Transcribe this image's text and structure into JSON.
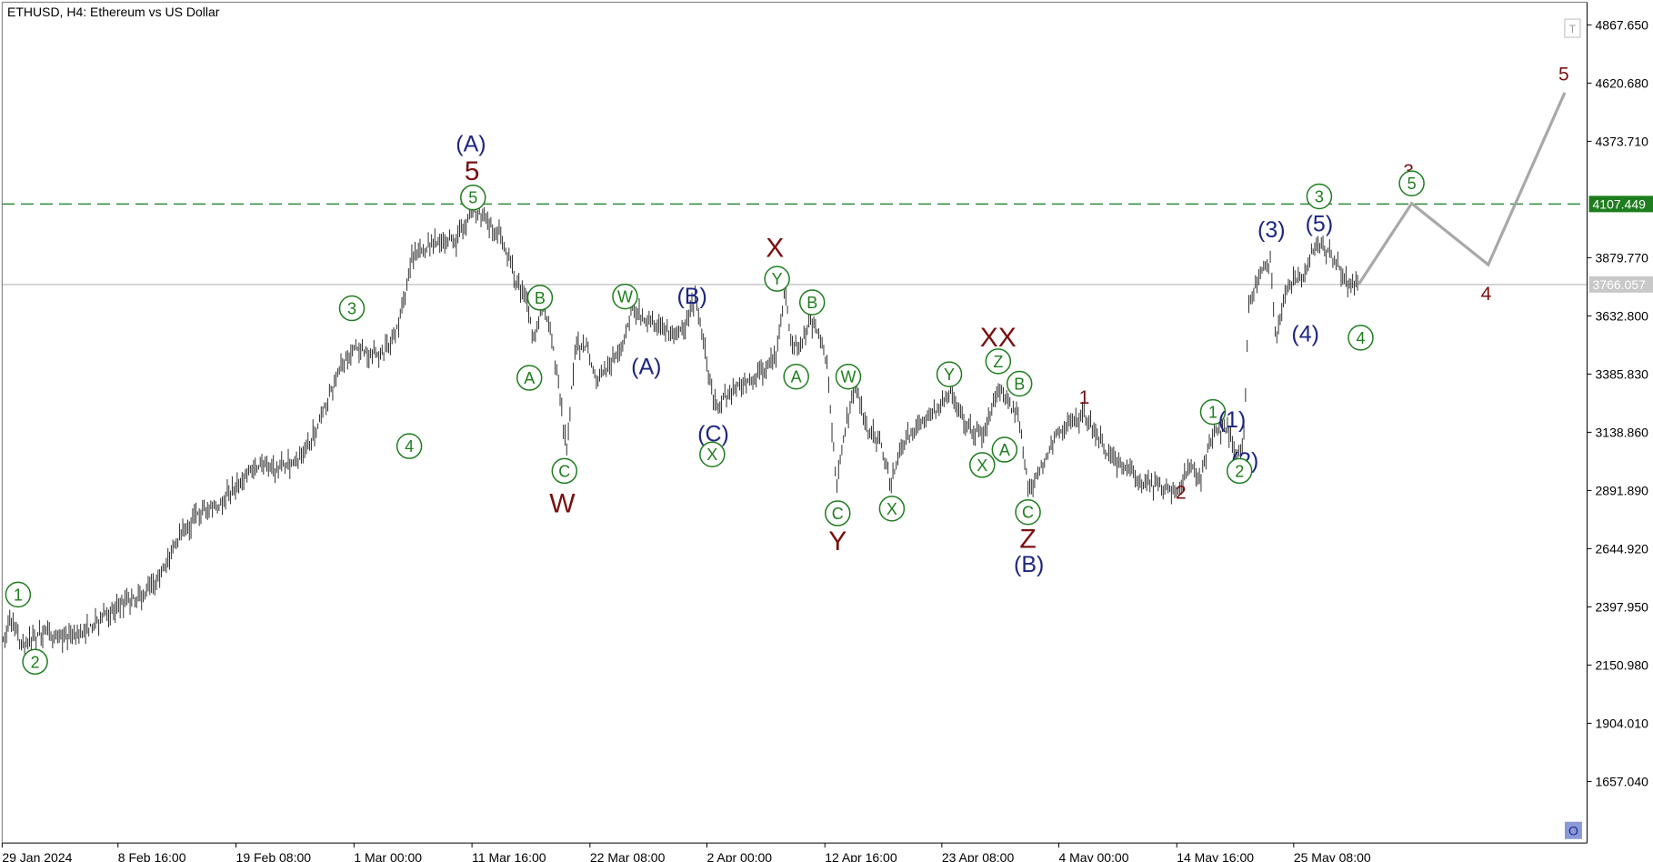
{
  "chart_title": "ETHUSD, H4:  Ethereum vs US Dollar",
  "colors": {
    "candle": "#1a1a1a",
    "green_label": "#1e7d1e",
    "navy_label": "#1e2680",
    "maroon_label": "#7a1010",
    "resistance_line": "#2e8b3a",
    "current_line": "#c8c8c8",
    "projection": "#a8a8a8",
    "axis": "#000000",
    "resistance_tag_bg": "#1e7d1e",
    "current_tag_bg": "#c8c8c8",
    "corner_button_bg": "#8a9ad8"
  },
  "axis": {
    "y_ticks": [
      "4867.650",
      "4620.680",
      "4373.710",
      "3879.770",
      "3632.800",
      "3385.830",
      "3138.860",
      "2891.890",
      "2644.920",
      "2397.950",
      "2150.980",
      "1904.010",
      "1657.040"
    ],
    "x_ticks": [
      "29 Jan 2024",
      "8 Feb 16:00",
      "19 Feb 08:00",
      "1 Mar 00:00",
      "11 Mar 16:00",
      "22 Mar 08:00",
      "2 Apr 00:00",
      "12 Apr 16:00",
      "23 Apr 08:00",
      "4 May 00:00",
      "14 May 16:00",
      "25 May 08:00"
    ],
    "resistance_label": "4107.449",
    "current_label": "3766.057",
    "top_button_icon": "T",
    "bottom_button_icon": "O"
  },
  "chart_data": {
    "type": "candlestick",
    "timeframe": "H4",
    "symbol": "ETHUSD",
    "ylim": [
      1450,
      4940
    ],
    "grid": false,
    "x_ticks": [
      "29 Jan 2024",
      "8 Feb 16:00",
      "19 Feb 08:00",
      "1 Mar 00:00",
      "11 Mar 16:00",
      "22 Mar 08:00",
      "2 Apr 00:00",
      "12 Apr 16:00",
      "23 Apr 08:00",
      "4 May 00:00",
      "14 May 16:00",
      "25 May 08:00"
    ],
    "resistance_level": 4107.449,
    "current_price": 3766.057,
    "price_path": [
      [
        0,
        2230
      ],
      [
        9,
        2330
      ],
      [
        12,
        2360
      ],
      [
        16,
        2280
      ],
      [
        22,
        2230
      ],
      [
        40,
        2290
      ],
      [
        60,
        2270
      ],
      [
        75,
        2280
      ],
      [
        90,
        2330
      ],
      [
        110,
        2400
      ],
      [
        130,
        2440
      ],
      [
        145,
        2480
      ],
      [
        155,
        2570
      ],
      [
        170,
        2700
      ],
      [
        190,
        2810
      ],
      [
        205,
        2820
      ],
      [
        220,
        2900
      ],
      [
        240,
        3000
      ],
      [
        260,
        2980
      ],
      [
        280,
        3020
      ],
      [
        298,
        3150
      ],
      [
        310,
        3300
      ],
      [
        322,
        3430
      ],
      [
        333,
        3510
      ],
      [
        345,
        3470
      ],
      [
        360,
        3470
      ],
      [
        372,
        3550
      ],
      [
        380,
        3700
      ],
      [
        387,
        3880
      ],
      [
        400,
        3920
      ],
      [
        415,
        3960
      ],
      [
        430,
        3950
      ],
      [
        445,
        4090
      ],
      [
        460,
        4020
      ],
      [
        472,
        3980
      ],
      [
        485,
        3780
      ],
      [
        495,
        3700
      ],
      [
        503,
        3520
      ],
      [
        510,
        3680
      ],
      [
        518,
        3580
      ],
      [
        525,
        3350
      ],
      [
        533,
        3060
      ],
      [
        541,
        3500
      ],
      [
        553,
        3500
      ],
      [
        560,
        3360
      ],
      [
        572,
        3420
      ],
      [
        585,
        3480
      ],
      [
        595,
        3690
      ],
      [
        605,
        3620
      ],
      [
        618,
        3590
      ],
      [
        632,
        3560
      ],
      [
        645,
        3600
      ],
      [
        654,
        3700
      ],
      [
        663,
        3480
      ],
      [
        673,
        3250
      ],
      [
        690,
        3320
      ],
      [
        712,
        3380
      ],
      [
        730,
        3460
      ],
      [
        738,
        3730
      ],
      [
        745,
        3520
      ],
      [
        752,
        3490
      ],
      [
        762,
        3620
      ],
      [
        770,
        3550
      ],
      [
        778,
        3420
      ],
      [
        787,
        2900
      ],
      [
        795,
        3150
      ],
      [
        805,
        3350
      ],
      [
        815,
        3150
      ],
      [
        828,
        3100
      ],
      [
        838,
        2920
      ],
      [
        850,
        3100
      ],
      [
        865,
        3170
      ],
      [
        880,
        3230
      ],
      [
        895,
        3320
      ],
      [
        910,
        3160
      ],
      [
        925,
        3130
      ],
      [
        940,
        3340
      ],
      [
        950,
        3250
      ],
      [
        958,
        3210
      ],
      [
        968,
        2880
      ],
      [
        980,
        3000
      ],
      [
        995,
        3140
      ],
      [
        1010,
        3180
      ],
      [
        1020,
        3210
      ],
      [
        1030,
        3150
      ],
      [
        1045,
        3020
      ],
      [
        1060,
        2980
      ],
      [
        1075,
        2920
      ],
      [
        1090,
        2910
      ],
      [
        1108,
        2890
      ],
      [
        1120,
        2990
      ],
      [
        1130,
        2950
      ],
      [
        1140,
        3130
      ],
      [
        1155,
        3150
      ],
      [
        1163,
        3020
      ],
      [
        1170,
        3100
      ],
      [
        1175,
        3700
      ],
      [
        1185,
        3800
      ],
      [
        1195,
        3860
      ],
      [
        1200,
        3520
      ],
      [
        1210,
        3760
      ],
      [
        1225,
        3800
      ],
      [
        1238,
        3950
      ],
      [
        1250,
        3900
      ],
      [
        1260,
        3830
      ],
      [
        1270,
        3760
      ],
      [
        1278,
        3766
      ]
    ],
    "projection": {
      "points": [
        [
          1278,
          3766
        ],
        [
          1328,
          4110
        ],
        [
          1400,
          3850
        ],
        [
          1472,
          4580
        ]
      ],
      "labels": [
        {
          "text": "3",
          "x": 1325,
          "price": 4250,
          "color": "maroon"
        },
        {
          "text": "5",
          "x": 1328,
          "price": 4195,
          "color": "green",
          "circled": true
        },
        {
          "text": "4",
          "x": 1398,
          "price": 3730,
          "color": "maroon"
        },
        {
          "text": "5",
          "x": 1471,
          "price": 4660,
          "color": "maroon"
        }
      ]
    },
    "wave_labels": [
      {
        "text": "1",
        "x": 17,
        "price": 2450,
        "color": "green",
        "circled": true
      },
      {
        "text": "2",
        "x": 33,
        "price": 2165,
        "color": "green",
        "circled": true
      },
      {
        "text": "3",
        "x": 331,
        "price": 3665,
        "color": "green",
        "circled": true
      },
      {
        "text": "4",
        "x": 385,
        "price": 3080,
        "color": "green",
        "circled": true
      },
      {
        "text": "(A)",
        "x": 443,
        "price": 4365,
        "color": "navy"
      },
      {
        "text": "5",
        "x": 444,
        "price": 4250,
        "color": "maroon",
        "big": true
      },
      {
        "text": "5",
        "x": 445,
        "price": 4135,
        "color": "green",
        "circled": true
      },
      {
        "text": "B",
        "x": 508,
        "price": 3710,
        "color": "green",
        "circled": true
      },
      {
        "text": "A",
        "x": 498,
        "price": 3370,
        "color": "green",
        "circled": true
      },
      {
        "text": "C",
        "x": 531,
        "price": 2975,
        "color": "green",
        "circled": true
      },
      {
        "text": "W",
        "x": 529,
        "price": 2840,
        "color": "maroon",
        "big": true
      },
      {
        "text": "W",
        "x": 588,
        "price": 3715,
        "color": "green",
        "circled": true
      },
      {
        "text": "(A)",
        "x": 608,
        "price": 3420,
        "color": "navy"
      },
      {
        "text": "(B)",
        "x": 651,
        "price": 3720,
        "color": "navy"
      },
      {
        "text": "(C)",
        "x": 671,
        "price": 3135,
        "color": "navy"
      },
      {
        "text": "X",
        "x": 670,
        "price": 3045,
        "color": "green",
        "circled": true
      },
      {
        "text": "X",
        "x": 729,
        "price": 3925,
        "color": "maroon",
        "big": true
      },
      {
        "text": "Y",
        "x": 731,
        "price": 3790,
        "color": "green",
        "circled": true
      },
      {
        "text": "B",
        "x": 764,
        "price": 3690,
        "color": "green",
        "circled": true
      },
      {
        "text": "A",
        "x": 749,
        "price": 3375,
        "color": "green",
        "circled": true
      },
      {
        "text": "W",
        "x": 798,
        "price": 3375,
        "color": "green",
        "circled": true
      },
      {
        "text": "C",
        "x": 788,
        "price": 2795,
        "color": "green",
        "circled": true
      },
      {
        "text": "Y",
        "x": 788,
        "price": 2680,
        "color": "maroon",
        "big": true
      },
      {
        "text": "X",
        "x": 839,
        "price": 2815,
        "color": "green",
        "circled": true
      },
      {
        "text": "Y",
        "x": 893,
        "price": 3385,
        "color": "green",
        "circled": true
      },
      {
        "text": "XX",
        "x": 939,
        "price": 3545,
        "color": "maroon",
        "big": true
      },
      {
        "text": "Z",
        "x": 939,
        "price": 3440,
        "color": "green",
        "circled": true
      },
      {
        "text": "B",
        "x": 959,
        "price": 3345,
        "color": "green",
        "circled": true
      },
      {
        "text": "A",
        "x": 945,
        "price": 3065,
        "color": "green",
        "circled": true
      },
      {
        "text": "X",
        "x": 924,
        "price": 3000,
        "color": "green",
        "circled": true
      },
      {
        "text": "C",
        "x": 967,
        "price": 2800,
        "color": "green",
        "circled": true
      },
      {
        "text": "Z",
        "x": 967,
        "price": 2690,
        "color": "maroon",
        "big": true
      },
      {
        "text": "(B)",
        "x": 968,
        "price": 2580,
        "color": "navy"
      },
      {
        "text": "1",
        "x": 1020,
        "price": 3290,
        "color": "maroon"
      },
      {
        "text": "2",
        "x": 1111,
        "price": 2885,
        "color": "maroon"
      },
      {
        "text": "1",
        "x": 1141,
        "price": 3225,
        "color": "green",
        "circled": true
      },
      {
        "text": "(1)",
        "x": 1159,
        "price": 3195,
        "color": "navy"
      },
      {
        "text": "(2)",
        "x": 1171,
        "price": 3020,
        "color": "navy"
      },
      {
        "text": "2",
        "x": 1166,
        "price": 2975,
        "color": "green",
        "circled": true
      },
      {
        "text": "(3)",
        "x": 1196,
        "price": 4000,
        "color": "navy"
      },
      {
        "text": "(4)",
        "x": 1228,
        "price": 3560,
        "color": "navy"
      },
      {
        "text": "(5)",
        "x": 1241,
        "price": 4025,
        "color": "navy"
      },
      {
        "text": "3",
        "x": 1241,
        "price": 4140,
        "color": "green",
        "circled": true
      },
      {
        "text": "4",
        "x": 1280,
        "price": 3540,
        "color": "green",
        "circled": true
      }
    ]
  }
}
